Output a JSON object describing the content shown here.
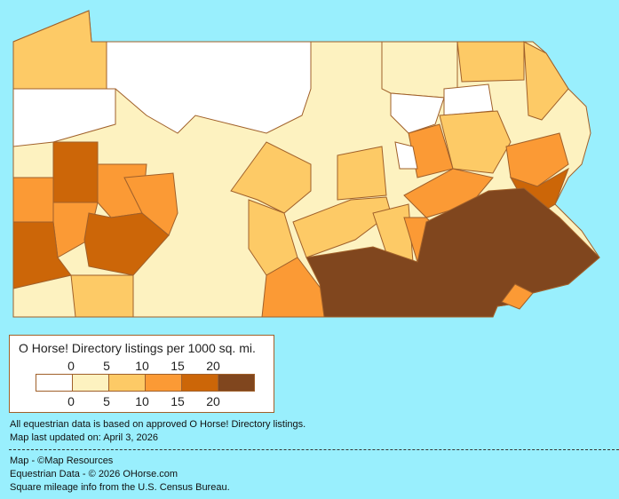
{
  "legend": {
    "title": "O Horse! Directory listings per 1000 sq. mi.",
    "top_ticks": [
      "0",
      "5",
      "10",
      "15",
      "20"
    ],
    "bottom_ticks": [
      "0",
      "5",
      "10",
      "15",
      "20"
    ],
    "colors": [
      "#ffffff",
      "#fdf2c0",
      "#fdca66",
      "#fb9a35",
      "#cc6608",
      "#80461e"
    ]
  },
  "notes": {
    "data_basis": "All equestrian data is based on approved O Horse! Directory listings.",
    "updated": "Map last updated on: April 3, 2026"
  },
  "credits": {
    "map": "Map - ©Map Resources",
    "data": "Equestrian Data - © 2026 OHorse.com",
    "census": "Square mileage info from the U.S. Census Bureau."
  },
  "colors": {
    "background": "#99effd",
    "border": "#a0602a"
  }
}
